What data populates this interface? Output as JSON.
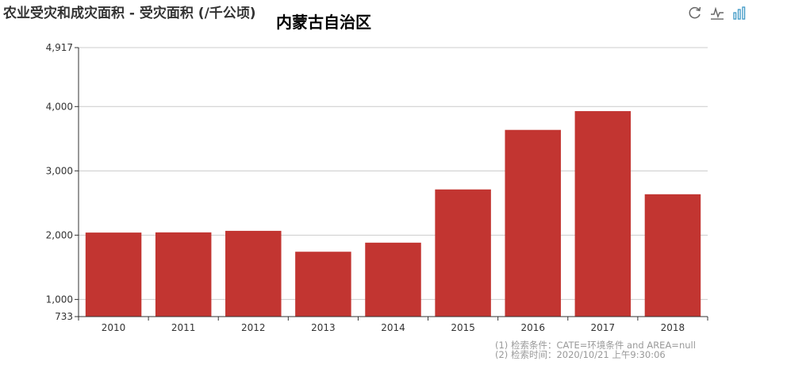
{
  "chart_data": {
    "type": "bar",
    "title": "农业受灾和成灾面积 - 受灾面积 (/千公顷)",
    "subtitle": "内蒙古自治区",
    "categories": [
      "2010",
      "2011",
      "2012",
      "2013",
      "2014",
      "2015",
      "2016",
      "2017",
      "2018"
    ],
    "series": [
      {
        "values": [
          2040,
          2043,
          2067,
          1742,
          1883,
          2711,
          3637,
          3929,
          2636
        ]
      }
    ],
    "ylim": [
      733,
      4917
    ],
    "yticks": [
      733,
      1000,
      2000,
      3000,
      4000,
      4917
    ],
    "ytick_labels": [
      "733",
      "1,000",
      "2,000",
      "3,000",
      "4,000",
      "4,917"
    ],
    "grid": true,
    "colors": {
      "bar": "#c23531",
      "grid": "#cccccc",
      "axis": "#333333"
    }
  },
  "toolbox": [
    {
      "icon": "restore-icon"
    },
    {
      "icon": "line-chart-icon"
    },
    {
      "icon": "bar-chart-icon"
    }
  ],
  "footnotes": [
    "(1) 检索条件：CATE=环境条件 and AREA=null",
    "(2) 检索时间：2020/10/21 上午9:30:06"
  ]
}
